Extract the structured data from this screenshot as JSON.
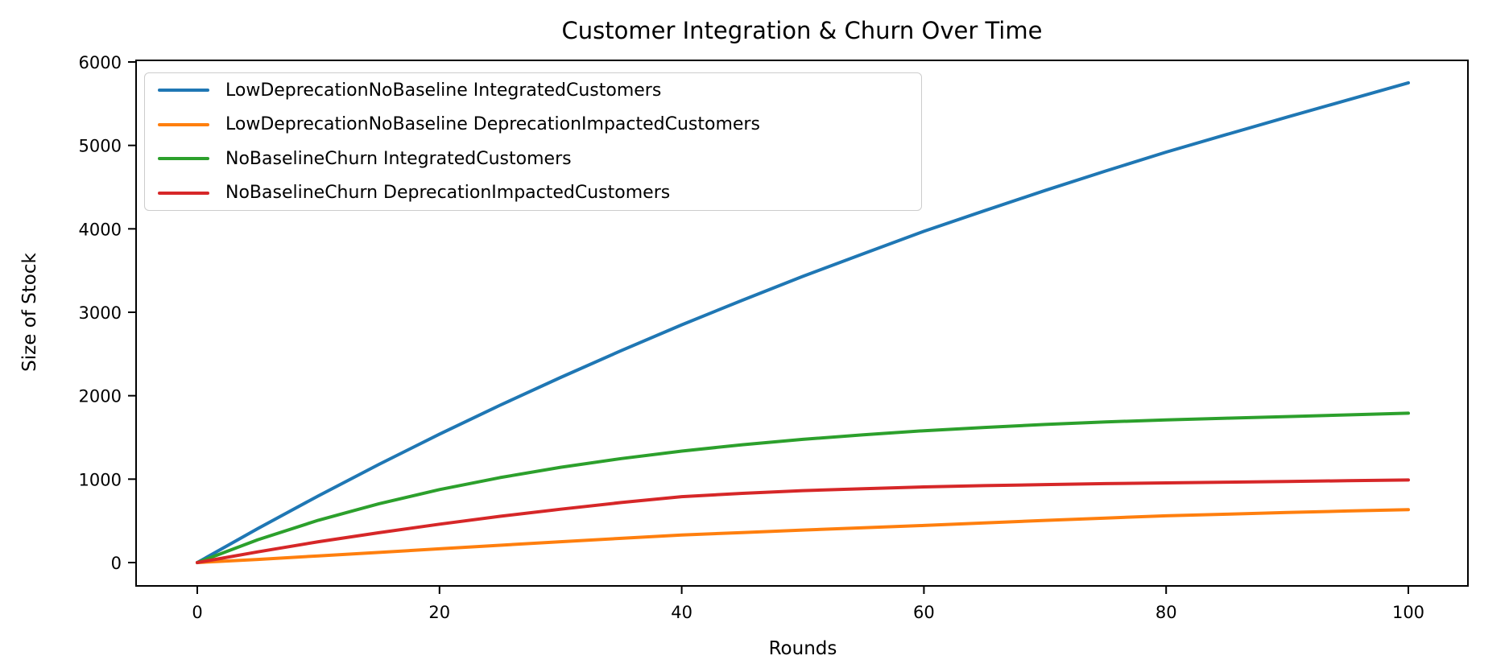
{
  "chart_data": {
    "type": "line",
    "title": "Customer Integration & Churn Over Time",
    "xlabel": "Rounds",
    "ylabel": "Size of Stock",
    "xlim": [
      -5,
      105
    ],
    "ylim": [
      -287,
      6027
    ],
    "x_ticks": [
      0,
      20,
      40,
      60,
      80,
      100
    ],
    "y_ticks": [
      0,
      1000,
      2000,
      3000,
      4000,
      5000,
      6000
    ],
    "grid": false,
    "legend_position": "upper left",
    "x": [
      0,
      5,
      10,
      15,
      20,
      25,
      30,
      35,
      40,
      45,
      50,
      55,
      60,
      65,
      70,
      75,
      80,
      85,
      90,
      95,
      100
    ],
    "series": [
      {
        "name": "LowDeprecationNoBaseline IntegratedCustomers",
        "color": "#1f77b4",
        "values": [
          0,
          408,
          800,
          1177,
          1540,
          1886,
          2219,
          2540,
          2850,
          3144,
          3430,
          3702,
          3970,
          4217,
          4460,
          4693,
          4920,
          5131,
          5340,
          5545,
          5750
        ]
      },
      {
        "name": "LowDeprecationNoBaseline DeprecationImpactedCustomers",
        "color": "#ff7f0e",
        "values": [
          0,
          38,
          80,
          122,
          165,
          207,
          250,
          290,
          330,
          360,
          390,
          417,
          445,
          475,
          505,
          533,
          560,
          580,
          600,
          618,
          635
        ]
      },
      {
        "name": "NoBaselineChurn IntegratedCustomers",
        "color": "#2ca02c",
        "values": [
          0,
          274,
          507,
          705,
          875,
          1019,
          1142,
          1246,
          1336,
          1412,
          1477,
          1532,
          1580,
          1620,
          1655,
          1685,
          1710,
          1731,
          1750,
          1770,
          1790
        ]
      },
      {
        "name": "NoBaselineChurn DeprecationImpactedCustomers",
        "color": "#d62728",
        "values": [
          0,
          128,
          250,
          358,
          460,
          555,
          640,
          720,
          790,
          830,
          862,
          886,
          907,
          922,
          935,
          946,
          955,
          964,
          972,
          981,
          990
        ]
      }
    ]
  }
}
